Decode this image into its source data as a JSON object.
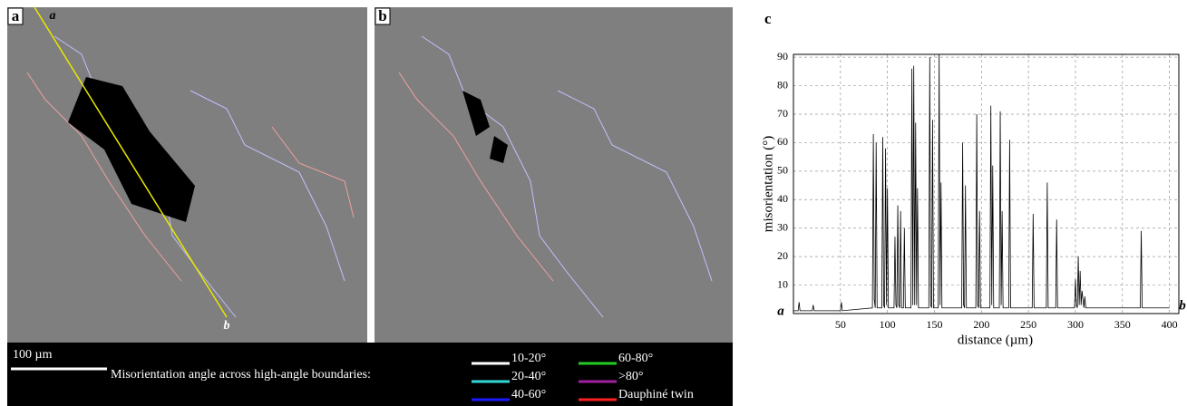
{
  "panels": [
    {
      "label": "a",
      "line_start": "a",
      "line_end": "b"
    },
    {
      "label": "b"
    }
  ],
  "scale_bar": "100 µm",
  "legend_title": "Misorientation angle across high-angle boundaries:",
  "legend": [
    {
      "name": "10-20°",
      "color": "#ffffff"
    },
    {
      "name": "20-40°",
      "color": "#33d6d6"
    },
    {
      "name": "40-60°",
      "color": "#1a1aff"
    },
    {
      "name": "60-80°",
      "color": "#22cc22"
    },
    {
      "name": ">80°",
      "color": "#a020a0"
    },
    {
      "name": "Dauphiné twin",
      "color": "#ff2020"
    }
  ],
  "chart_data": {
    "type": "line",
    "panel_label": "c",
    "xlabel": "distance (µm)",
    "ylabel": "misorientation (°)",
    "start_label": "a",
    "end_label": "b",
    "color": "#000000",
    "grid": true,
    "xlim": [
      0,
      410
    ],
    "ylim": [
      0,
      91
    ],
    "xticks": [
      50,
      100,
      150,
      200,
      250,
      300,
      350,
      400
    ],
    "yticks": [
      10,
      20,
      30,
      40,
      50,
      60,
      70,
      80,
      90
    ],
    "x": [
      0,
      5,
      6,
      7,
      20,
      21,
      22,
      50,
      51,
      52,
      84,
      85,
      86,
      87,
      88,
      89,
      94,
      95,
      96,
      97,
      98,
      99,
      100,
      101,
      107,
      108,
      109,
      110,
      111,
      112,
      113,
      114,
      115,
      117,
      118,
      119,
      125,
      126,
      127,
      128,
      129,
      130,
      131,
      132,
      133,
      144,
      145,
      146,
      147,
      148,
      149,
      154,
      155,
      156,
      157,
      158,
      179,
      180,
      181,
      182,
      183,
      184,
      194,
      195,
      196,
      197,
      198,
      199,
      209,
      210,
      211,
      212,
      213,
      219,
      220,
      221,
      222,
      223,
      229,
      230,
      231,
      254,
      255,
      256,
      269,
      270,
      271,
      279,
      280,
      281,
      299,
      300,
      301,
      302,
      303,
      304,
      305,
      306,
      307,
      309,
      310,
      311,
      369,
      370,
      371,
      400
    ],
    "values": [
      1,
      1,
      4,
      1,
      1,
      3,
      1,
      1,
      4,
      1,
      2,
      63,
      5,
      2,
      60,
      2,
      2,
      62,
      3,
      2,
      58,
      3,
      44,
      2,
      2,
      27,
      3,
      2,
      38,
      3,
      2,
      36,
      2,
      2,
      30,
      2,
      2,
      86,
      3,
      87,
      3,
      67,
      3,
      44,
      2,
      2,
      90,
      3,
      2,
      68,
      2,
      2,
      91,
      3,
      46,
      2,
      2,
      60,
      3,
      2,
      45,
      2,
      2,
      70,
      3,
      2,
      36,
      2,
      2,
      73,
      3,
      52,
      2,
      2,
      71,
      3,
      36,
      2,
      2,
      61,
      2,
      2,
      35,
      2,
      2,
      46,
      2,
      2,
      33,
      2,
      2,
      12,
      3,
      2,
      20,
      3,
      15,
      3,
      8,
      2,
      6,
      2,
      2,
      29,
      2,
      2
    ]
  }
}
